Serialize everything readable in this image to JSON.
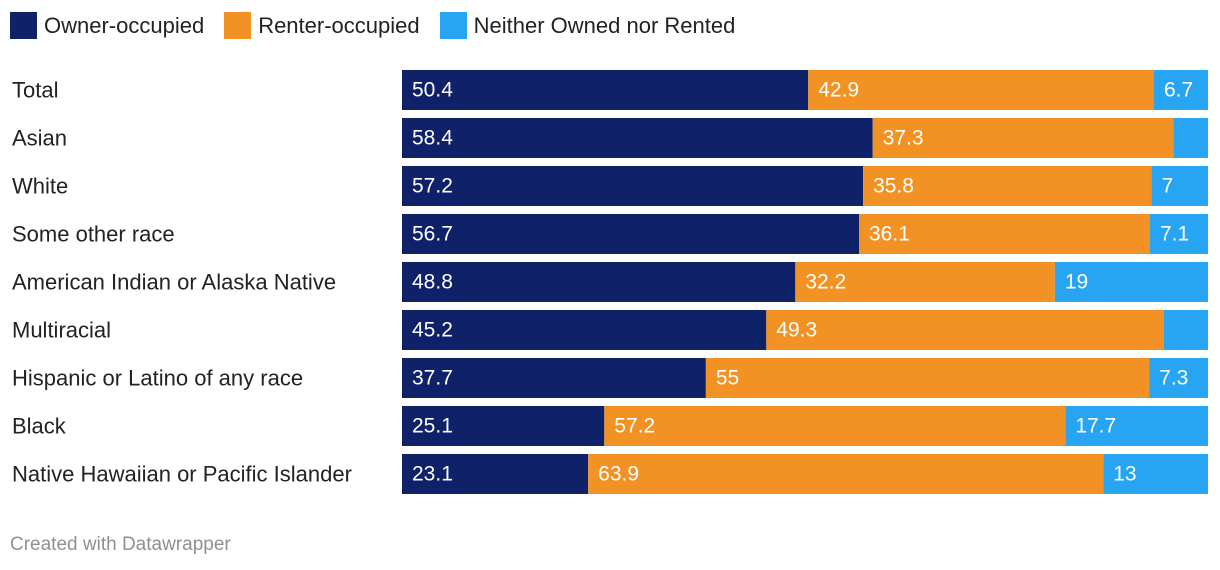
{
  "chart_data": {
    "type": "bar",
    "orientation": "horizontal",
    "stacked": true,
    "categories": [
      "Total",
      "Asian",
      "White",
      "Some other race",
      "American Indian or Alaska Native",
      "Multiracial",
      "Hispanic or Latino of any race",
      "Black",
      "Native Hawaiian or Pacific Islander"
    ],
    "series": [
      {
        "name": "Owner-occupied",
        "color": "#0f2169",
        "values": [
          50.4,
          58.4,
          57.2,
          56.7,
          48.8,
          45.2,
          37.7,
          25.1,
          23.1
        ],
        "labels": [
          "50.4",
          "58.4",
          "57.2",
          "56.7",
          "48.8",
          "45.2",
          "37.7",
          "25.1",
          "23.1"
        ]
      },
      {
        "name": "Renter-occupied",
        "color": "#f29224",
        "values": [
          42.9,
          37.3,
          35.8,
          36.1,
          32.2,
          49.3,
          55,
          57.2,
          63.9
        ],
        "labels": [
          "42.9",
          "37.3",
          "35.8",
          "36.1",
          "32.2",
          "49.3",
          "55",
          "57.2",
          "63.9"
        ]
      },
      {
        "name": "Neither Owned nor Rented",
        "color": "#27a4f2",
        "values": [
          6.7,
          4.3,
          7,
          7.1,
          19,
          5.5,
          7.3,
          17.7,
          13
        ],
        "labels": [
          "6.7",
          "",
          "7",
          "7.1",
          "19",
          "",
          "7.3",
          "17.7",
          "13"
        ]
      }
    ],
    "xlim": [
      0,
      100
    ],
    "legend_position": "top-left"
  },
  "footer": "Created with Datawrapper"
}
